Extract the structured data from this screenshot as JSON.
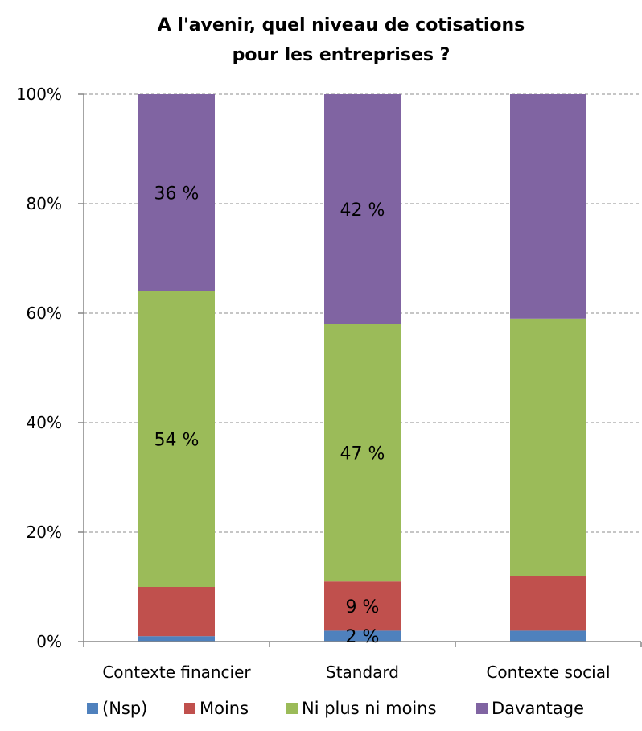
{
  "chart_data": {
    "type": "bar",
    "stacked": true,
    "title_lines": [
      "A l'avenir, quel niveau de cotisations",
      "pour les entreprises ?"
    ],
    "categories": [
      "Contexte financier",
      "Standard",
      "Contexte social"
    ],
    "series": [
      {
        "name": "(Nsp)",
        "color": "#4f81bd",
        "values": [
          1,
          2,
          2
        ],
        "labels": [
          "",
          "2 %",
          ""
        ]
      },
      {
        "name": "Moins",
        "color": "#c0504d",
        "values": [
          9,
          9,
          10
        ],
        "labels": [
          "",
          "9 %",
          ""
        ]
      },
      {
        "name": "Ni plus ni moins",
        "color": "#9bbb59",
        "values": [
          54,
          47,
          47
        ],
        "labels": [
          "54 %",
          "47 %",
          ""
        ]
      },
      {
        "name": "Davantage",
        "color": "#8064a2",
        "values": [
          36,
          42,
          41
        ],
        "labels": [
          "36 %",
          "42 %",
          ""
        ]
      }
    ],
    "y_ticks": [
      "0%",
      "20%",
      "40%",
      "60%",
      "80%",
      "100%"
    ],
    "ylim": [
      0,
      100
    ],
    "grid": true,
    "legend_position": "bottom"
  }
}
